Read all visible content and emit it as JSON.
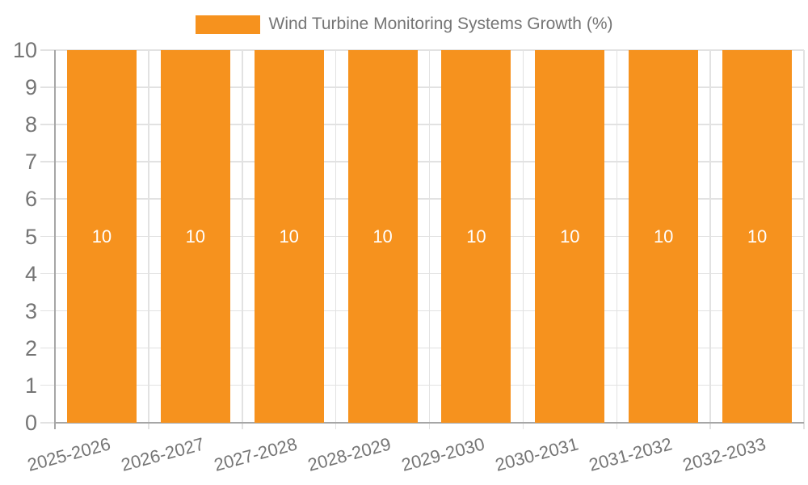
{
  "chart_data": {
    "type": "bar",
    "title": "Wind Turbine Monitoring Systems Growth (%)",
    "categories": [
      "2025-2026",
      "2026-2027",
      "2027-2028",
      "2028-2029",
      "2029-2030",
      "2030-2031",
      "2031-2032",
      "2032-2033"
    ],
    "series": [
      {
        "name": "Wind Turbine Monitoring Systems Growth (%)",
        "values": [
          10,
          10,
          10,
          10,
          10,
          10,
          10,
          10
        ]
      }
    ],
    "bar_value_labels": [
      "10",
      "10",
      "10",
      "10",
      "10",
      "10",
      "10",
      "10"
    ],
    "value_label_position": "inside-center",
    "xlabel": "",
    "ylabel": "",
    "ylim": [
      0,
      10
    ],
    "yticks": [
      0,
      1,
      2,
      3,
      4,
      5,
      6,
      7,
      8,
      9,
      10
    ],
    "grid": true,
    "legend_position": "top-center",
    "x_tick_rotation_deg": -15,
    "colors": {
      "bar": "#F6921E",
      "value_label": "#FFFFFF",
      "grid_line": "#E2E2E2",
      "axis_line": "#A6A6A6",
      "tick_label": "#757575",
      "legend_text": "#757575",
      "background": "#FFFFFF"
    }
  }
}
